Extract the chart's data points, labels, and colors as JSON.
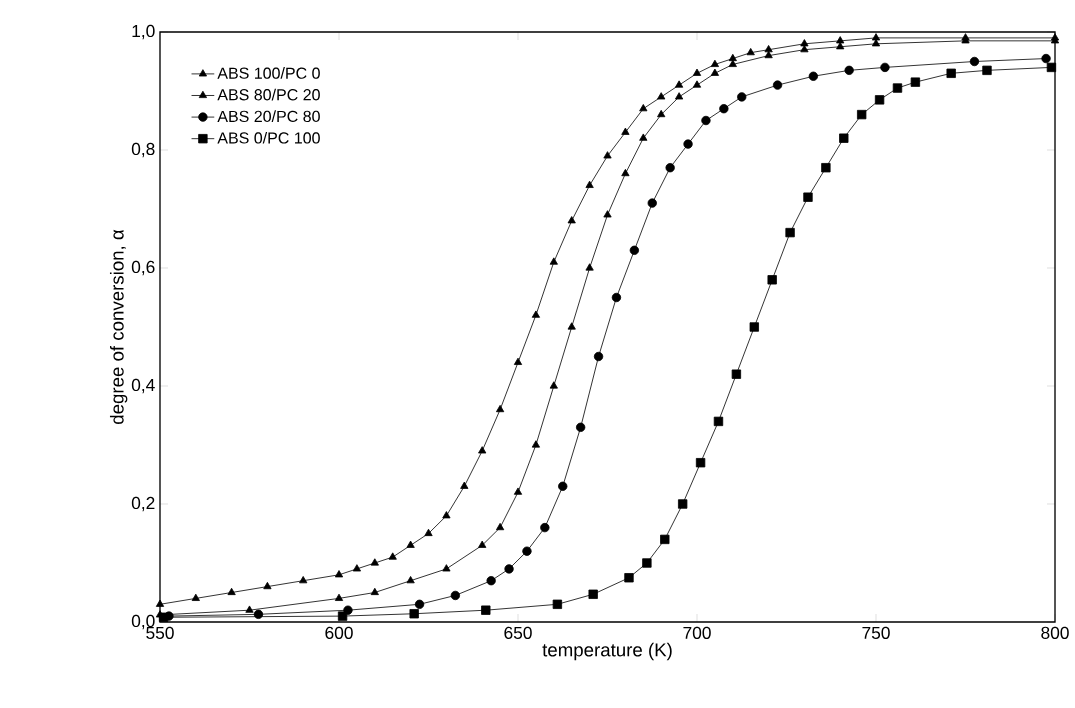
{
  "chart_data": {
    "type": "line",
    "xlabel": "temperature (K)",
    "ylabel": "degree of conversion, α",
    "xlim": [
      550,
      800
    ],
    "ylim": [
      0,
      1
    ],
    "xticks": [
      550,
      600,
      650,
      700,
      750,
      800
    ],
    "yticks": [
      {
        "value": 0,
        "label": "0,0"
      },
      {
        "value": 0.2,
        "label": "0,2"
      },
      {
        "value": 0.4,
        "label": "0,4"
      },
      {
        "value": 0.6,
        "label": "0,6"
      },
      {
        "value": 0.8,
        "label": "0,8"
      },
      {
        "value": 1,
        "label": "1,0"
      }
    ],
    "grid": false,
    "legend": "top left",
    "line_style": "solid",
    "series": [
      {
        "name": "ABS 100/PC 0",
        "color": "#000000",
        "marker": "triangle",
        "x": [
          550,
          575,
          600,
          610,
          620,
          630,
          640,
          645,
          650,
          655,
          660,
          665,
          670,
          675,
          680,
          685,
          690,
          695,
          700,
          705,
          710,
          720,
          730,
          740,
          750,
          775,
          800
        ],
        "values": [
          0.012,
          0.02,
          0.04,
          0.05,
          0.07,
          0.09,
          0.13,
          0.16,
          0.22,
          0.3,
          0.4,
          0.5,
          0.6,
          0.69,
          0.76,
          0.82,
          0.86,
          0.89,
          0.91,
          0.93,
          0.945,
          0.96,
          0.97,
          0.975,
          0.98,
          0.985,
          0.985
        ]
      },
      {
        "name": "ABS 80/PC 20",
        "color": "#000000",
        "marker": "triangle",
        "x": [
          550,
          560,
          570,
          580,
          590,
          600,
          605,
          610,
          615,
          620,
          625,
          630,
          635,
          640,
          645,
          650,
          655,
          660,
          665,
          670,
          675,
          680,
          685,
          690,
          695,
          700,
          705,
          710,
          715,
          720,
          730,
          740,
          750,
          775,
          800
        ],
        "values": [
          0.03,
          0.04,
          0.05,
          0.06,
          0.07,
          0.08,
          0.09,
          0.1,
          0.11,
          0.13,
          0.15,
          0.18,
          0.23,
          0.29,
          0.36,
          0.44,
          0.52,
          0.61,
          0.68,
          0.74,
          0.79,
          0.83,
          0.87,
          0.89,
          0.91,
          0.93,
          0.945,
          0.955,
          0.965,
          0.97,
          0.98,
          0.985,
          0.99,
          0.99,
          0.99
        ]
      },
      {
        "name": "ABS 20/PC 80",
        "color": "#000000",
        "marker": "circle",
        "x": [
          552.5,
          577.5,
          602.5,
          622.5,
          632.5,
          642.5,
          647.5,
          652.5,
          657.5,
          662.5,
          667.5,
          672.5,
          677.5,
          682.5,
          687.5,
          692.5,
          697.5,
          702.5,
          707.5,
          712.5,
          722.5,
          732.5,
          742.5,
          752.5,
          777.5,
          797.5
        ],
        "values": [
          0.01,
          0.013,
          0.02,
          0.03,
          0.045,
          0.07,
          0.09,
          0.12,
          0.16,
          0.23,
          0.33,
          0.45,
          0.55,
          0.63,
          0.71,
          0.77,
          0.81,
          0.85,
          0.87,
          0.89,
          0.91,
          0.925,
          0.935,
          0.94,
          0.95,
          0.955
        ]
      },
      {
        "name": "ABS 0/PC 100",
        "color": "#000000",
        "marker": "square",
        "x": [
          551,
          601,
          621,
          641,
          661,
          671,
          681,
          686,
          691,
          696,
          701,
          706,
          711,
          716,
          721,
          726,
          731,
          736,
          741,
          746,
          751,
          756,
          761,
          771,
          781,
          799
        ],
        "values": [
          0.008,
          0.01,
          0.014,
          0.02,
          0.03,
          0.047,
          0.075,
          0.1,
          0.14,
          0.2,
          0.27,
          0.34,
          0.42,
          0.5,
          0.58,
          0.66,
          0.72,
          0.77,
          0.82,
          0.86,
          0.885,
          0.905,
          0.915,
          0.93,
          0.935,
          0.94
        ]
      }
    ]
  }
}
